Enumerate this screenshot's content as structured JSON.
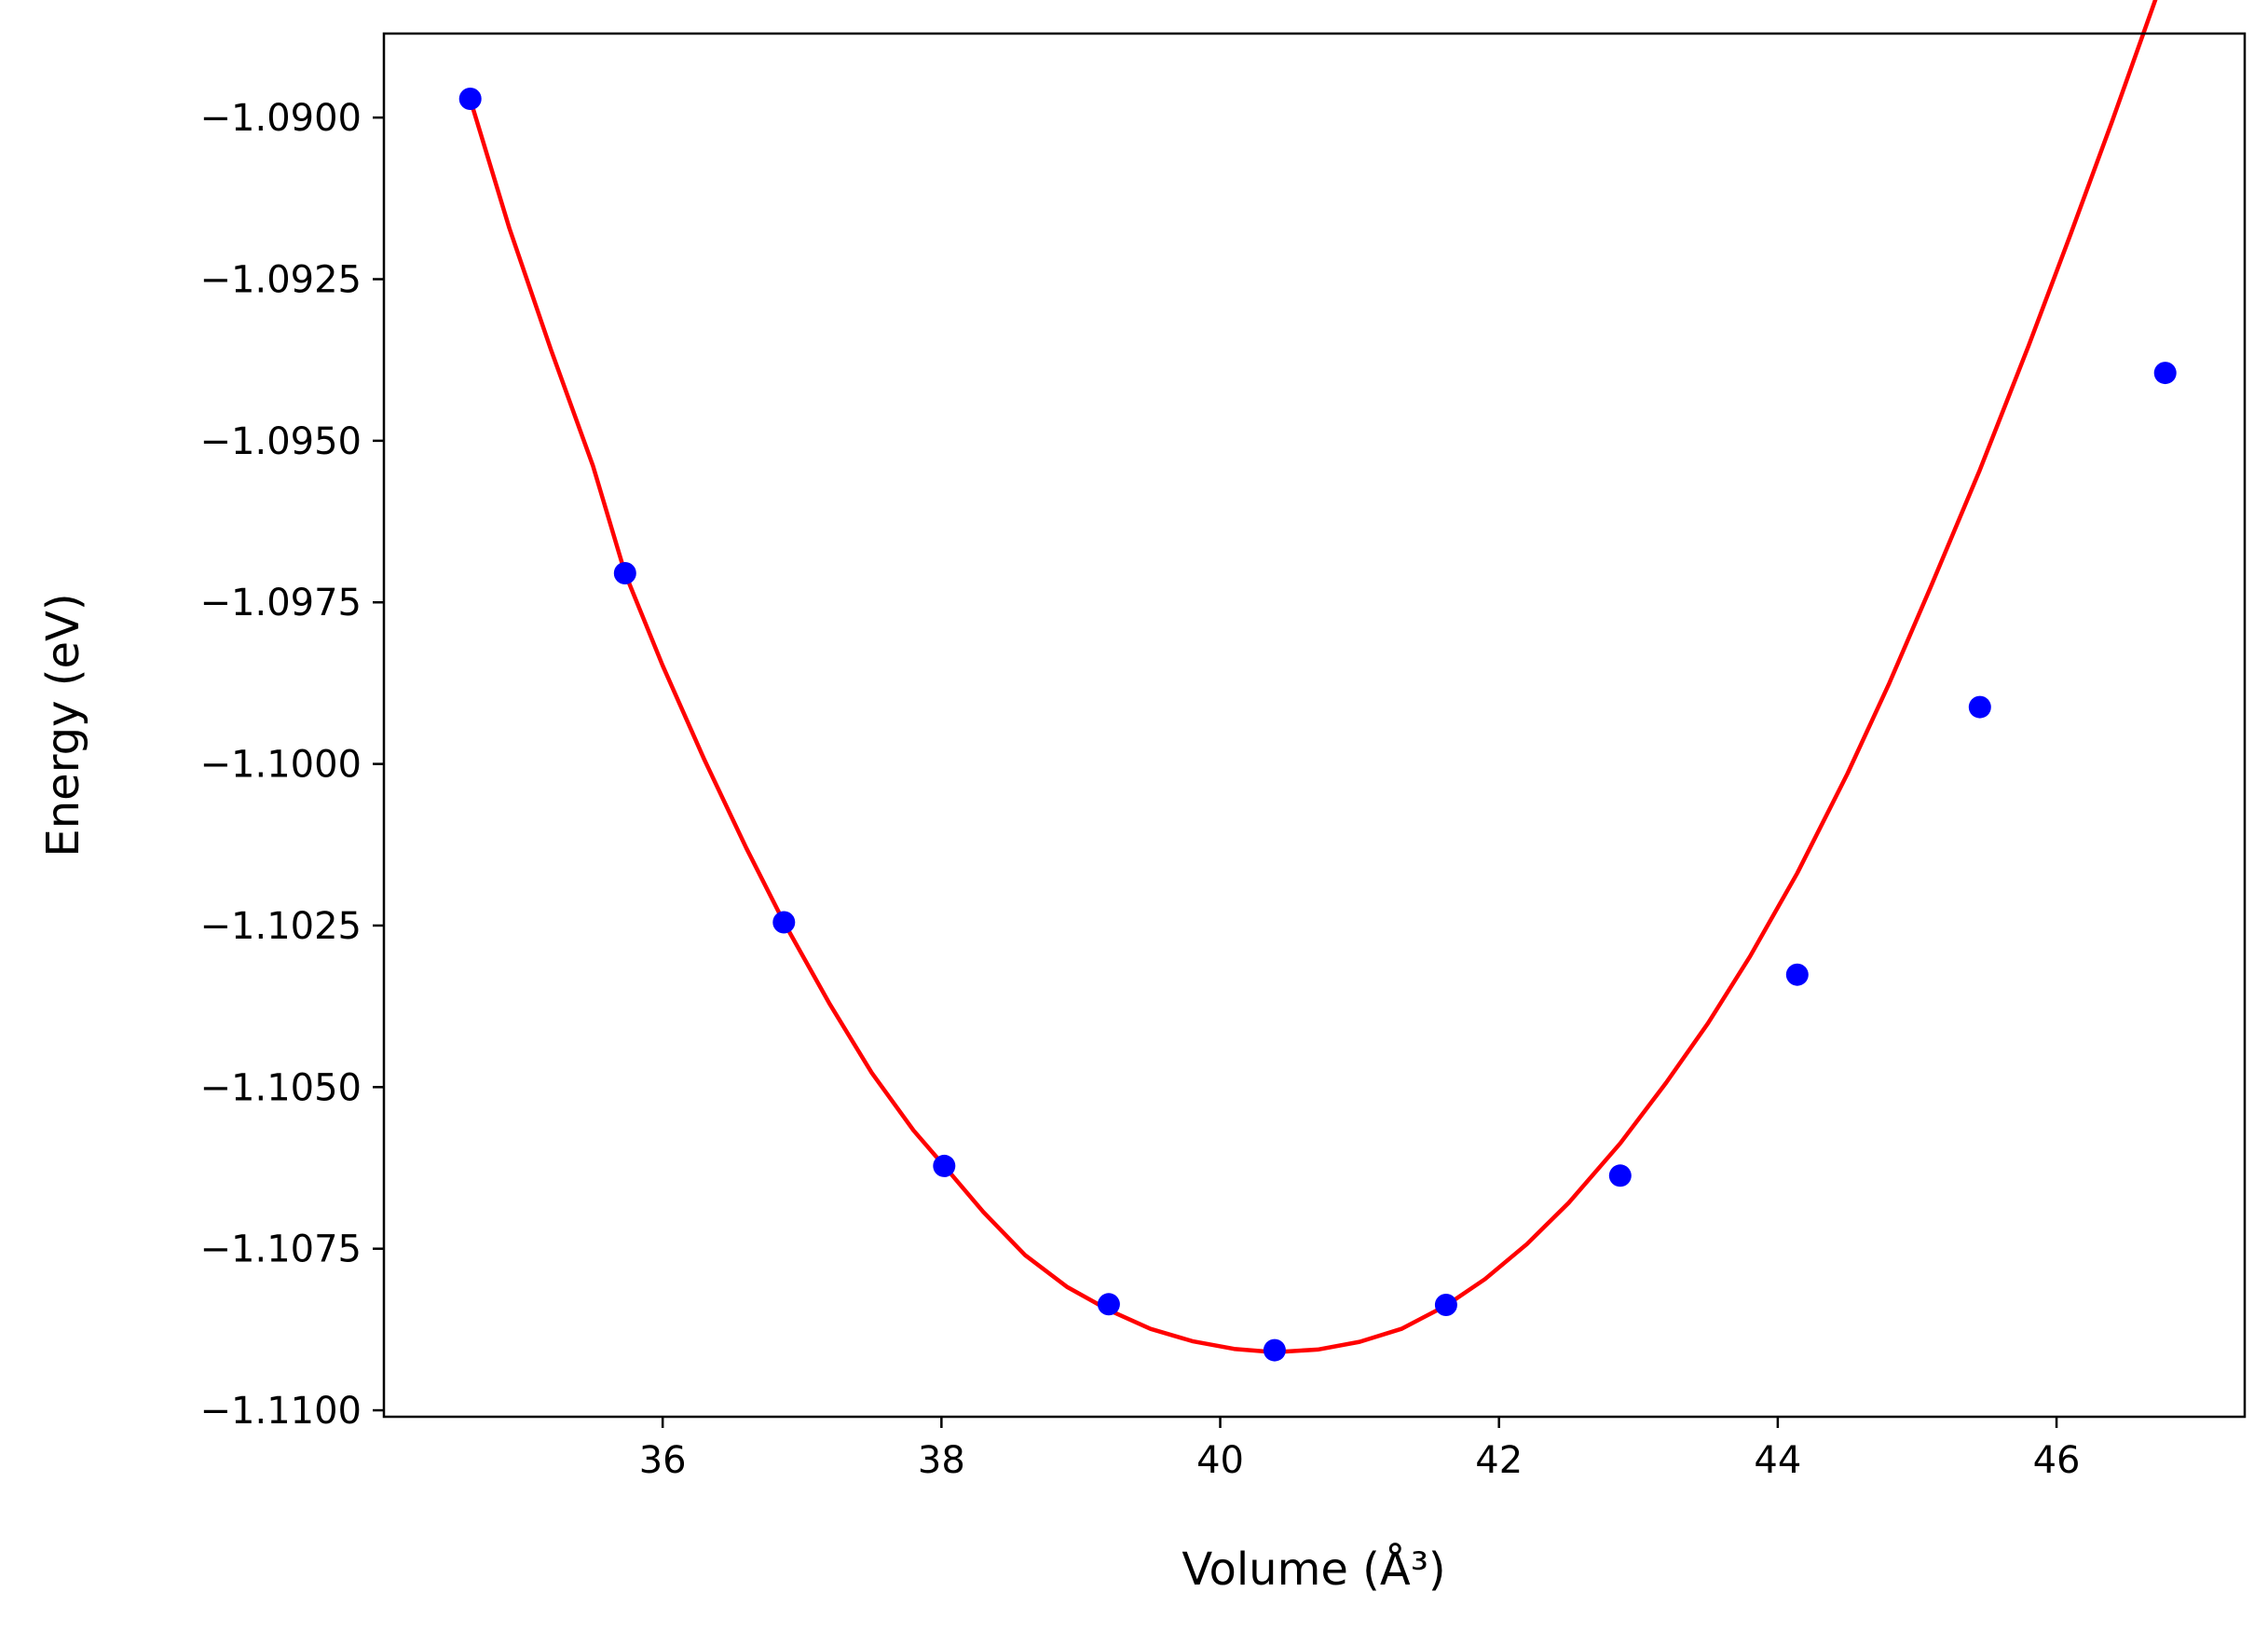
{
  "chart_data": {
    "type": "scatter",
    "xlabel": "Volume (Å³)",
    "ylabel": "Energy (eV)",
    "xlim": [
      34.0,
      47.35
    ],
    "ylim": [
      -1.1101,
      -1.0887
    ],
    "xticks": [
      36,
      38,
      40,
      42,
      44,
      46
    ],
    "xtick_labels": [
      "36",
      "38",
      "40",
      "42",
      "44",
      "46"
    ],
    "yticks": [
      -1.09,
      -1.0925,
      -1.095,
      -1.0975,
      -1.1,
      -1.1025,
      -1.105,
      -1.1075,
      -1.11
    ],
    "ytick_labels": [
      "−1.0900",
      "−1.0925",
      "−1.0950",
      "−1.0975",
      "−1.1000",
      "−1.1025",
      "−1.1050",
      "−1.1075",
      "−1.1100"
    ],
    "grid": false,
    "series": [
      {
        "kind": "points",
        "color": "#0000ff",
        "x": [
          34.62,
          35.73,
          36.87,
          38.02,
          39.2,
          40.39,
          41.62,
          42.87,
          44.14,
          45.45,
          46.78
        ],
        "y": [
          -1.08971,
          -1.09705,
          -1.10245,
          -1.10622,
          -1.10836,
          -1.10907,
          -1.10837,
          -1.10637,
          -1.10326,
          -1.09912,
          -1.09395
        ]
      },
      {
        "kind": "fit-line",
        "color": "#ff0000",
        "x": [
          34.62,
          34.9,
          35.2,
          35.5,
          35.73,
          36.0,
          36.3,
          36.6,
          36.87,
          37.2,
          37.5,
          37.8,
          38.02,
          38.3,
          38.6,
          38.9,
          39.2,
          39.5,
          39.8,
          40.1,
          40.39,
          40.7,
          41.0,
          41.3,
          41.62,
          41.9,
          42.2,
          42.5,
          42.87,
          43.2,
          43.5,
          43.8,
          44.14,
          44.5,
          44.8,
          45.1,
          45.45,
          45.8,
          46.1,
          46.4,
          46.78
        ],
        "y": [
          -1.08972,
          -1.09171,
          -1.0936,
          -1.09539,
          -1.09705,
          -1.09848,
          -1.09994,
          -1.1013,
          -1.10245,
          -1.10372,
          -1.10478,
          -1.10567,
          -1.10622,
          -1.10693,
          -1.1076,
          -1.10809,
          -1.10845,
          -1.10874,
          -1.10893,
          -1.10905,
          -1.1091,
          -1.10906,
          -1.10894,
          -1.10874,
          -1.10838,
          -1.10797,
          -1.10743,
          -1.10679,
          -1.10587,
          -1.10493,
          -1.10401,
          -1.10298,
          -1.10169,
          -1.10015,
          -1.09875,
          -1.09725,
          -1.09545,
          -1.09353,
          -1.09181,
          -1.09005,
          -1.08775
        ]
      }
    ]
  }
}
